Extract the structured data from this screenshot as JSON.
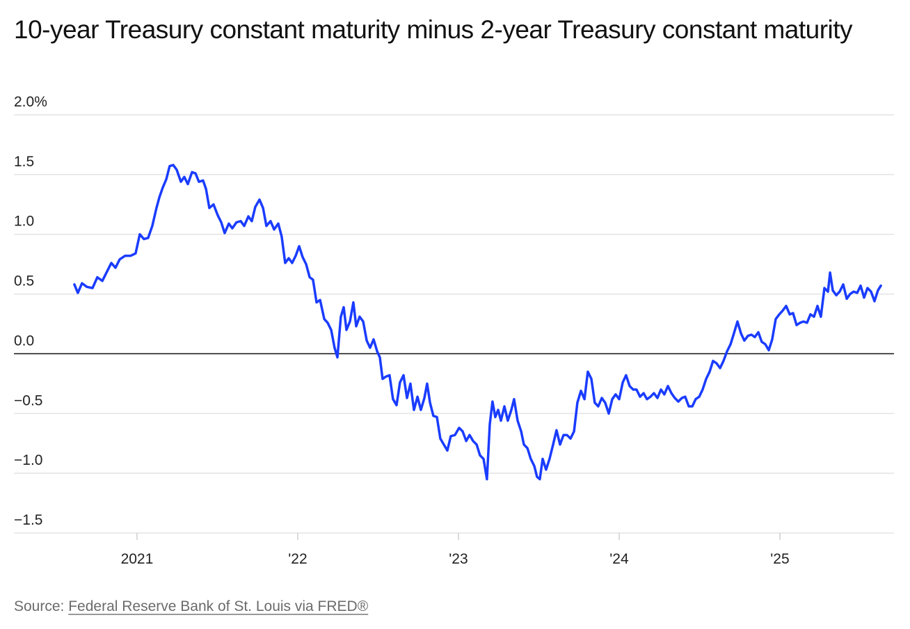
{
  "chart_data": {
    "type": "line",
    "title": "10-year Treasury constant maturity minus 2-year Treasury constant maturity",
    "source_label": "Source:",
    "source_link": "Federal Reserve Bank of St. Louis via FRED®",
    "color": "#1a3cff",
    "grid": true,
    "xlim": [
      2020.234,
      2025.71
    ],
    "xticks": [
      2021,
      {
        "value": 2022,
        "label": "'22"
      },
      {
        "value": 2023,
        "label": "'23"
      },
      {
        "value": 2024,
        "label": "'24"
      },
      {
        "value": 2025,
        "label": "'25"
      }
    ],
    "ylim": [
      -1.5,
      2.0
    ],
    "yticks": [
      {
        "value": -1.5,
        "label": "−1.5"
      },
      {
        "value": -1.0,
        "label": "−1.0"
      },
      {
        "value": -0.5,
        "label": "−0.5"
      },
      {
        "value": 0,
        "label": "0.0"
      },
      0.5,
      {
        "value": 1.0,
        "label": "1.0"
      },
      1.5,
      {
        "value": 2.0,
        "label": "2.0%"
      }
    ],
    "x": [
      2020.61,
      2020.632,
      2020.658,
      2020.688,
      2020.723,
      2020.753,
      2020.784,
      2020.81,
      2020.84,
      2020.866,
      2020.892,
      2020.926,
      2020.961,
      2020.991,
      2021.017,
      2021.043,
      2021.069,
      2021.095,
      2021.121,
      2021.139,
      2021.16,
      2021.182,
      2021.203,
      2021.225,
      2021.247,
      2021.273,
      2021.294,
      2021.316,
      2021.342,
      2021.364,
      2021.385,
      2021.411,
      2021.429,
      2021.45,
      2021.476,
      2021.502,
      2021.524,
      2021.545,
      2021.571,
      2021.593,
      2021.619,
      2021.645,
      2021.667,
      2021.693,
      2021.714,
      2021.736,
      2021.762,
      2021.784,
      2021.805,
      2021.831,
      2021.853,
      2021.879,
      2021.9,
      2021.922,
      2021.944,
      2021.965,
      2021.987,
      2022.009,
      2022.03,
      2022.052,
      2022.074,
      2022.095,
      2022.117,
      2022.139,
      2022.165,
      2022.186,
      2022.208,
      2022.229,
      2022.247,
      2022.268,
      2022.286,
      2022.303,
      2022.325,
      2022.346,
      2022.364,
      2022.385,
      2022.407,
      2022.429,
      2022.45,
      2022.472,
      2022.494,
      2022.511,
      2022.528,
      2022.55,
      2022.571,
      2022.593,
      2022.615,
      2022.636,
      2022.658,
      2022.68,
      2022.701,
      2022.723,
      2022.745,
      2022.766,
      2022.788,
      2022.805,
      2022.823,
      2022.844,
      2022.866,
      2022.887,
      2022.909,
      2022.931,
      2022.952,
      2022.978,
      2023.004,
      2023.026,
      2023.048,
      2023.069,
      2023.091,
      2023.113,
      2023.134,
      2023.156,
      2023.177,
      2023.195,
      2023.212,
      2023.229,
      2023.247,
      2023.264,
      2023.286,
      2023.307,
      2023.329,
      2023.346,
      2023.368,
      2023.39,
      2023.407,
      2023.429,
      2023.45,
      2023.472,
      2023.489,
      2023.506,
      2023.524,
      2023.545,
      2023.567,
      2023.589,
      2023.61,
      2023.632,
      2023.654,
      2023.675,
      2023.697,
      2023.719,
      2023.74,
      2023.762,
      2023.784,
      2023.805,
      2023.827,
      2023.848,
      2023.87,
      2023.892,
      2023.913,
      2023.935,
      2023.957,
      2023.978,
      2024.0,
      2024.022,
      2024.043,
      2024.065,
      2024.087,
      2024.108,
      2024.13,
      2024.152,
      2024.173,
      2024.195,
      2024.216,
      2024.238,
      2024.26,
      2024.281,
      2024.303,
      2024.325,
      2024.346,
      2024.368,
      2024.39,
      2024.411,
      2024.433,
      2024.455,
      2024.476,
      2024.498,
      2024.519,
      2024.541,
      2024.563,
      2024.584,
      2024.606,
      2024.628,
      2024.649,
      2024.671,
      2024.693,
      2024.714,
      2024.736,
      2024.758,
      2024.779,
      2024.801,
      2024.823,
      2024.844,
      2024.866,
      2024.887,
      2024.909,
      2024.931,
      2024.952,
      2024.974,
      2024.996,
      2025.017,
      2025.039,
      2025.061,
      2025.082,
      2025.104,
      2025.126,
      2025.147,
      2025.169,
      2025.19,
      2025.212,
      2025.234,
      2025.255,
      2025.277,
      2025.299,
      2025.312,
      2025.329,
      2025.351,
      2025.372,
      2025.394,
      2025.416,
      2025.437,
      2025.459,
      2025.481,
      2025.502,
      2025.524,
      2025.545,
      2025.567,
      2025.589,
      2025.61,
      2025.628
    ],
    "values": [
      0.58,
      0.51,
      0.59,
      0.56,
      0.55,
      0.64,
      0.61,
      0.68,
      0.76,
      0.72,
      0.79,
      0.82,
      0.82,
      0.84,
      1.0,
      0.96,
      0.97,
      1.07,
      1.22,
      1.31,
      1.39,
      1.46,
      1.57,
      1.58,
      1.54,
      1.44,
      1.48,
      1.42,
      1.52,
      1.51,
      1.44,
      1.45,
      1.38,
      1.22,
      1.25,
      1.16,
      1.1,
      1.01,
      1.09,
      1.05,
      1.1,
      1.11,
      1.07,
      1.15,
      1.11,
      1.23,
      1.29,
      1.22,
      1.07,
      1.11,
      1.04,
      1.09,
      0.98,
      0.76,
      0.8,
      0.76,
      0.82,
      0.9,
      0.81,
      0.75,
      0.64,
      0.62,
      0.43,
      0.45,
      0.29,
      0.26,
      0.2,
      0.05,
      -0.03,
      0.31,
      0.39,
      0.2,
      0.27,
      0.43,
      0.23,
      0.31,
      0.27,
      0.11,
      0.05,
      0.12,
      0.02,
      -0.03,
      -0.21,
      -0.19,
      -0.18,
      -0.38,
      -0.43,
      -0.24,
      -0.18,
      -0.37,
      -0.25,
      -0.47,
      -0.36,
      -0.47,
      -0.37,
      -0.25,
      -0.41,
      -0.52,
      -0.53,
      -0.71,
      -0.76,
      -0.81,
      -0.69,
      -0.68,
      -0.62,
      -0.65,
      -0.73,
      -0.68,
      -0.73,
      -0.76,
      -0.85,
      -0.88,
      -1.05,
      -0.59,
      -0.4,
      -0.53,
      -0.47,
      -0.56,
      -0.44,
      -0.56,
      -0.47,
      -0.38,
      -0.56,
      -0.65,
      -0.76,
      -0.79,
      -0.88,
      -0.94,
      -1.03,
      -1.05,
      -0.88,
      -0.97,
      -0.88,
      -0.76,
      -0.64,
      -0.76,
      -0.68,
      -0.68,
      -0.71,
      -0.65,
      -0.41,
      -0.31,
      -0.38,
      -0.15,
      -0.21,
      -0.41,
      -0.44,
      -0.37,
      -0.41,
      -0.5,
      -0.38,
      -0.34,
      -0.38,
      -0.24,
      -0.18,
      -0.27,
      -0.3,
      -0.3,
      -0.36,
      -0.33,
      -0.38,
      -0.36,
      -0.33,
      -0.37,
      -0.3,
      -0.34,
      -0.27,
      -0.33,
      -0.37,
      -0.4,
      -0.37,
      -0.36,
      -0.44,
      -0.44,
      -0.38,
      -0.36,
      -0.3,
      -0.21,
      -0.15,
      -0.06,
      -0.08,
      -0.12,
      -0.06,
      0.02,
      0.08,
      0.17,
      0.27,
      0.17,
      0.11,
      0.15,
      0.16,
      0.14,
      0.18,
      0.1,
      0.08,
      0.03,
      0.12,
      0.29,
      0.33,
      0.36,
      0.4,
      0.33,
      0.34,
      0.24,
      0.26,
      0.27,
      0.26,
      0.33,
      0.31,
      0.4,
      0.31,
      0.55,
      0.52,
      0.68,
      0.53,
      0.49,
      0.52,
      0.58,
      0.46,
      0.5,
      0.52,
      0.51,
      0.57,
      0.47,
      0.55,
      0.52,
      0.44,
      0.53,
      0.57
    ]
  }
}
